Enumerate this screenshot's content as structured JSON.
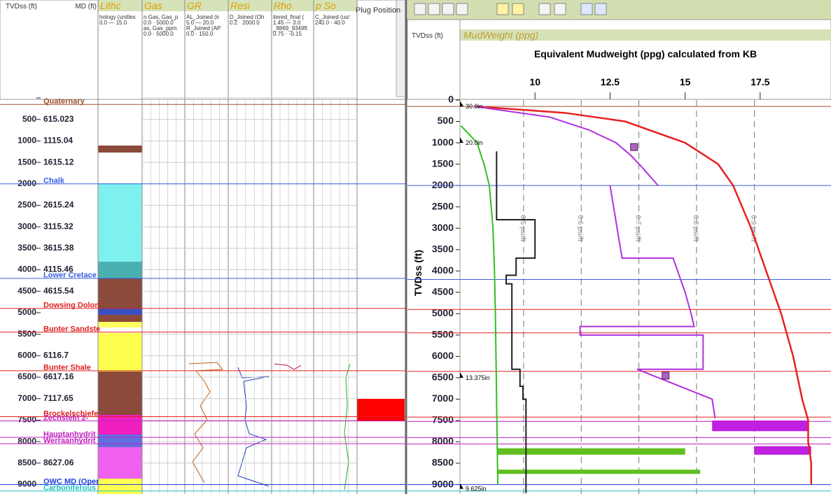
{
  "left_panel": {
    "depth_header": "TVDss (ft)",
    "md_header": "MD (ft)",
    "tracks": [
      {
        "name": "Lithc",
        "scales": [
          "hology (unitles",
          "0.0 — 15.0"
        ]
      },
      {
        "name": "Gas",
        "scales": [
          "n Gas, Gas_p",
          "0.0 · 5000.0",
          "as, Gas_ppm",
          "0.0 · 5000.0"
        ]
      },
      {
        "name": "GR",
        "scales": [
          "AL_Joined (ir",
          "5.0 — 20.0",
          "R_Joined (AP",
          "0.0 · 150.0"
        ]
      },
      {
        "name": "Resi",
        "scales": [
          "D_Joined (Oh",
          "0.2 · 2000.0"
        ]
      },
      {
        "name": "Rho",
        "scales": [
          "itered_final (",
          "1.45 — 3.0",
          "_8869_9349ft",
          "0.75 · -0.15"
        ]
      },
      {
        "name": "p So",
        "scales": [
          "C_Joined (us/",
          "240.0 · 40.0"
        ]
      }
    ],
    "plug_header": "Plug Position",
    "md_labels": [
      "615.023",
      "1115.04",
      "1615.12",
      null,
      "2615.24",
      "3115.32",
      "3615.38",
      "4115.46",
      "4615.54",
      null,
      null,
      "6116.7",
      "6617.16",
      "7117.65",
      null,
      null,
      "8627.06",
      null
    ]
  },
  "formations": [
    {
      "name": "Quaternary",
      "depth": 150,
      "color": "#a0522d"
    },
    {
      "name": "Chalk",
      "depth": 2000,
      "color": "#3a5fe0"
    },
    {
      "name": "Lower Cretace",
      "depth": 4200,
      "color": "#3a5fe0"
    },
    {
      "name": "Dowsing Dolon",
      "depth": 4900,
      "color": "#e02020"
    },
    {
      "name": "Bunter Sandste",
      "depth": 5450,
      "color": "#e02020"
    },
    {
      "name": "Bunter Shale",
      "depth": 6350,
      "color": "#e02020"
    },
    {
      "name": "Brockelschiefe",
      "depth": 7420,
      "color": "#e02020"
    },
    {
      "name": "Zechstein 2-",
      "depth": 7520,
      "color": "#c020c0"
    },
    {
      "name": "Hauptanhydrit",
      "depth": 7900,
      "color": "#c020c0"
    },
    {
      "name": "Werraanhydrit",
      "depth": 8050,
      "color": "#c020c0"
    },
    {
      "name": "OWC MD (Oper",
      "depth": 9000,
      "color": "#2040e0"
    },
    {
      "name": "Carboniferous",
      "depth": 9150,
      "color": "#20c0c0"
    }
  ],
  "mudweight": {
    "depth_header": "TVDss (ft)",
    "track_header": "MudWeight (ppg)",
    "title": "Equivalent Mudweight (ppg) calculated from KB",
    "ylabel": "TVDss (ft)",
    "xlim": [
      7.5,
      19.3
    ],
    "xticks": [
      10,
      12.5,
      15,
      17.5
    ],
    "ylim": [
      0,
      9220
    ],
    "yticks": [
      0,
      500,
      1000,
      1500,
      2000,
      2500,
      3000,
      3500,
      4000,
      4500,
      5000,
      5500,
      6000,
      6500,
      7000,
      7500,
      8000,
      8500,
      9000
    ],
    "gradients": [
      {
        "label": "0.5 psi/ft",
        "ppg": 9.62
      },
      {
        "label": "0.6 psi/ft",
        "ppg": 11.54
      },
      {
        "label": "0.7 psi/ft",
        "ppg": 13.46
      },
      {
        "label": "0.8 psi/ft",
        "ppg": 15.38
      },
      {
        "label": "0.9 psi/ft",
        "ppg": 17.31
      }
    ],
    "curves": [
      {
        "color": "#e82020",
        "depth": [
          150,
          300,
          500,
          1000,
          1500,
          2000,
          3000,
          4000,
          5000,
          6000,
          7000,
          7500,
          8000,
          8500,
          9000
        ],
        "ppg": [
          8.0,
          11.0,
          13.0,
          15.0,
          16.1,
          16.6,
          17.2,
          17.7,
          18.2,
          18.6,
          18.9,
          19.1,
          19.1,
          19.2,
          19.2
        ]
      },
      {
        "color": "#30c020",
        "depth": [
          600,
          800,
          1000,
          1500,
          2000,
          3000,
          4000,
          5000,
          6000,
          7000,
          8000,
          9000
        ],
        "ppg": [
          7.53,
          7.8,
          8.07,
          8.3,
          8.48,
          8.6,
          8.65,
          8.68,
          8.7,
          8.72,
          8.74,
          8.76
        ]
      },
      {
        "color": "#202020",
        "depth": [
          1200,
          2800,
          2800,
          3700,
          3700,
          4100,
          4100,
          4300,
          4300,
          6300,
          6300,
          6700,
          6700,
          7000,
          7000,
          9200
        ],
        "ppg": [
          8.72,
          8.72,
          10.0,
          10.0,
          9.37,
          9.37,
          9.04,
          9.04,
          9.23,
          9.23,
          9.5,
          9.5,
          9.6,
          9.6,
          9.7,
          9.7
        ]
      },
      {
        "color": "#b030e0",
        "depth": [
          150,
          400,
          700,
          1000,
          1300,
          1600,
          1800,
          2000
        ],
        "ppg": [
          8.0,
          10.5,
          11.8,
          12.7,
          13.2,
          13.6,
          13.85,
          14.1
        ]
      },
      {
        "color": "#b030e0",
        "depth": [
          2000,
          3700,
          3700,
          4500,
          5000,
          5300,
          5300,
          5500,
          5500,
          6300,
          6300,
          7000,
          7450
        ],
        "ppg": [
          12.5,
          12.9,
          14.6,
          15.0,
          15.2,
          15.3,
          11.5,
          11.5,
          15.6,
          15.6,
          13.4,
          15.9,
          16.0
        ]
      }
    ],
    "blocks": [
      {
        "color": "#c020e0",
        "top": 7500,
        "bottom": 7750,
        "from": 15.9,
        "to": 19.1
      },
      {
        "color": "#c020e0",
        "top": 8100,
        "bottom": 8300,
        "from": 17.3,
        "to": 19.2
      },
      {
        "color": "#60c020",
        "top": 8150,
        "bottom": 8300,
        "from": 8.76,
        "to": 15.0
      },
      {
        "color": "#60c020",
        "top": 8650,
        "bottom": 8750,
        "from": 8.76,
        "to": 15.5
      }
    ],
    "casings": [
      {
        "label": "30.0in",
        "depth": 150
      },
      {
        "label": "20.0in",
        "depth": 1000
      },
      {
        "label": "13.375in",
        "depth": 6500
      },
      {
        "label": "9.625in",
        "depth": 9100
      }
    ],
    "samples": [
      {
        "depth": 1100,
        "ppg": 13.3
      },
      {
        "depth": 6450,
        "ppg": 14.35
      }
    ]
  }
}
